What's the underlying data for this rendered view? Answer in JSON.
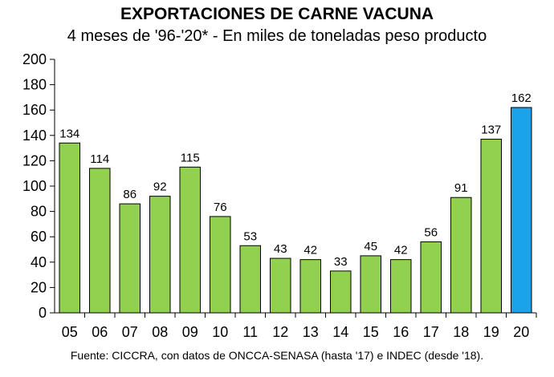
{
  "chart_data": {
    "type": "bar",
    "title": "EXPORTACIONES DE CARNE VACUNA",
    "subtitle": "4 meses de '96-'20* - En miles de toneladas peso producto",
    "source": "Fuente: CICCRA, con datos de ONCCA-SENASA (hasta '17) e INDEC (desde '18).",
    "categories": [
      "05",
      "06",
      "07",
      "08",
      "09",
      "10",
      "11",
      "12",
      "13",
      "14",
      "15",
      "16",
      "17",
      "18",
      "19",
      "20"
    ],
    "values": [
      134,
      114,
      86,
      92,
      115,
      76,
      53,
      43,
      42,
      33,
      45,
      42,
      56,
      91,
      137,
      162
    ],
    "value_labels": [
      "134",
      "114",
      "86",
      "92",
      "115",
      "76",
      "53",
      "43",
      "42",
      "33",
      "45",
      "42",
      "56",
      "91",
      "137",
      "162"
    ],
    "yticks": [
      "0",
      "20",
      "40",
      "60",
      "80",
      "100",
      "120",
      "140",
      "160",
      "180",
      "200"
    ],
    "ylim": [
      0,
      200
    ],
    "xlabel": "",
    "ylabel": "",
    "grid": false,
    "colors": {
      "default_bar": "#92D050",
      "highlight_bar": "#1AA3EA",
      "bar_edge": "#000000"
    },
    "highlight_index": 15
  }
}
